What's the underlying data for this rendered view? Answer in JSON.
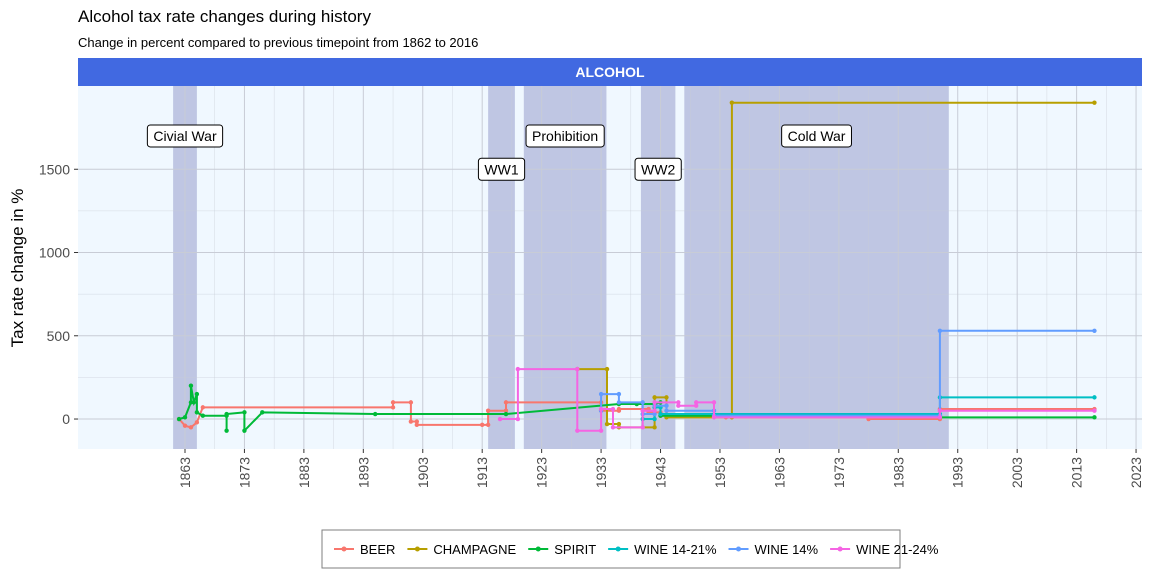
{
  "chart_data": {
    "type": "line",
    "title": "Alcohol tax rate changes during history",
    "subtitle": "Change in percent compared to previous timepoint from 1862 to 2016",
    "facet_label": "ALCOHOL",
    "xlabel": "",
    "ylabel": "Tax rate change in %",
    "xlim": [
      1845,
      2024
    ],
    "ylim": [
      -180,
      2000
    ],
    "x_ticks": [
      1863,
      1873,
      1883,
      1893,
      1903,
      1913,
      1923,
      1933,
      1943,
      1953,
      1963,
      1973,
      1983,
      1993,
      2003,
      2013,
      2023
    ],
    "y_ticks": [
      0,
      500,
      1000,
      1500
    ],
    "grid": true,
    "legend_position": "bottom",
    "colors": {
      "panel_bg": "#f0f8ff",
      "strip_bg": "#4169e1",
      "period_fill": "#bfc6e3",
      "grid": "#c8ccd6"
    },
    "periods": [
      {
        "label": "Civial War",
        "start": 1861,
        "end": 1865
      },
      {
        "label": "WW1",
        "start": 1914,
        "end": 1918.5
      },
      {
        "label": "Prohibition",
        "start": 1920,
        "end": 1933.9
      },
      {
        "label": "WW2",
        "start": 1939.7,
        "end": 1945.5
      },
      {
        "label": "Cold War",
        "start": 1947,
        "end": 1991.5
      }
    ],
    "series": [
      {
        "name": "BEER",
        "color": "#f8766d",
        "points": [
          [
            1862,
            0
          ],
          [
            1863,
            -40
          ],
          [
            1864,
            -50
          ],
          [
            1865,
            -20
          ],
          [
            1866,
            70
          ],
          [
            1898,
            70
          ],
          [
            1898,
            100
          ],
          [
            1901,
            100
          ],
          [
            1901,
            -15
          ],
          [
            1902,
            -15
          ],
          [
            1902,
            -35
          ],
          [
            1913,
            -35
          ],
          [
            1914,
            -35
          ],
          [
            1914,
            50
          ],
          [
            1917,
            50
          ],
          [
            1917,
            100
          ],
          [
            1933,
            100
          ],
          [
            1933,
            50
          ],
          [
            1936,
            50
          ],
          [
            1936,
            60
          ],
          [
            1941,
            60
          ],
          [
            1941,
            40
          ],
          [
            1943,
            40
          ],
          [
            1943,
            20
          ],
          [
            1954,
            20
          ],
          [
            1954,
            10
          ],
          [
            1978,
            10
          ],
          [
            1978,
            0
          ],
          [
            1990,
            0
          ],
          [
            1990,
            60
          ],
          [
            2016,
            60
          ]
        ]
      },
      {
        "name": "CHAMPAGNE",
        "color": "#b79f00",
        "points": [
          [
            1929,
            300
          ],
          [
            1934,
            300
          ],
          [
            1934,
            -30
          ],
          [
            1936,
            -30
          ],
          [
            1936,
            -50
          ],
          [
            1942,
            -50
          ],
          [
            1942,
            130
          ],
          [
            1944,
            130
          ],
          [
            1944,
            10
          ],
          [
            1955,
            10
          ],
          [
            1955,
            1900
          ],
          [
            2016,
            1900
          ]
        ]
      },
      {
        "name": "SPIRIT",
        "color": "#00ba38",
        "points": [
          [
            1862,
            0
          ],
          [
            1863,
            10
          ],
          [
            1864,
            100
          ],
          [
            1864,
            200
          ],
          [
            1864.5,
            100
          ],
          [
            1865,
            150
          ],
          [
            1865,
            40
          ],
          [
            1866,
            20
          ],
          [
            1870,
            20
          ],
          [
            1870,
            -70
          ],
          [
            1870,
            30
          ],
          [
            1873,
            40
          ],
          [
            1873,
            -70
          ],
          [
            1876,
            40
          ],
          [
            1895,
            30
          ],
          [
            1917,
            30
          ],
          [
            1936,
            90
          ],
          [
            1939,
            90
          ],
          [
            1942,
            90
          ],
          [
            1943,
            100
          ],
          [
            1943,
            20
          ],
          [
            1990,
            20
          ],
          [
            1990,
            10
          ],
          [
            2016,
            10
          ]
        ]
      },
      {
        "name": "WINE 14-21%",
        "color": "#00bfc4",
        "points": [
          [
            1940,
            0
          ],
          [
            1942,
            0
          ],
          [
            1942,
            70
          ],
          [
            1943,
            70
          ],
          [
            1943,
            30
          ],
          [
            1990,
            30
          ],
          [
            1990,
            130
          ],
          [
            2016,
            130
          ]
        ]
      },
      {
        "name": "WINE 14%",
        "color": "#619cff",
        "points": [
          [
            1933,
            50
          ],
          [
            1933,
            150
          ],
          [
            1936,
            150
          ],
          [
            1936,
            100
          ],
          [
            1940,
            100
          ],
          [
            1940,
            30
          ],
          [
            1942,
            30
          ],
          [
            1942,
            80
          ],
          [
            1944,
            80
          ],
          [
            1944,
            50
          ],
          [
            1952,
            50
          ],
          [
            1952,
            20
          ],
          [
            1990,
            20
          ],
          [
            1990,
            530
          ],
          [
            2016,
            530
          ]
        ]
      },
      {
        "name": "WINE 21-24%",
        "color": "#f564e3",
        "points": [
          [
            1916,
            0
          ],
          [
            1919,
            0
          ],
          [
            1919,
            300
          ],
          [
            1929,
            300
          ],
          [
            1929,
            -70
          ],
          [
            1933,
            -70
          ],
          [
            1933,
            60
          ],
          [
            1935,
            60
          ],
          [
            1935,
            -50
          ],
          [
            1940,
            -50
          ],
          [
            1940,
            50
          ],
          [
            1942,
            50
          ],
          [
            1942,
            100
          ],
          [
            1946,
            100
          ],
          [
            1946,
            80
          ],
          [
            1949,
            80
          ],
          [
            1949,
            100
          ],
          [
            1952,
            100
          ],
          [
            1952,
            10
          ],
          [
            1990,
            10
          ],
          [
            1990,
            50
          ],
          [
            2016,
            50
          ]
        ]
      }
    ]
  }
}
